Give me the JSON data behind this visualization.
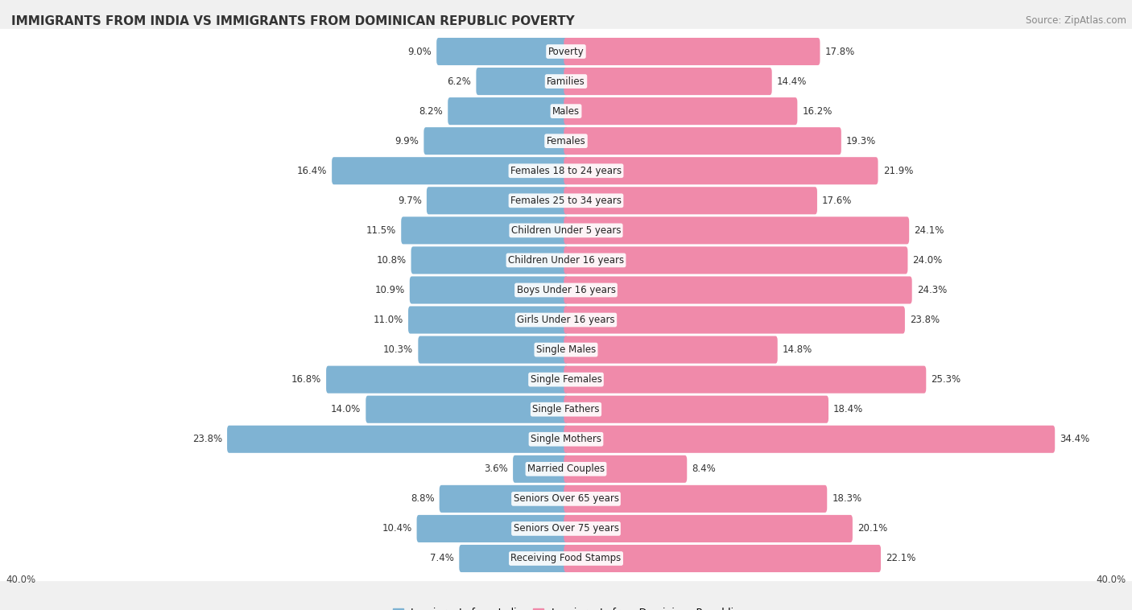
{
  "title": "IMMIGRANTS FROM INDIA VS IMMIGRANTS FROM DOMINICAN REPUBLIC POVERTY",
  "source": "Source: ZipAtlas.com",
  "categories": [
    "Poverty",
    "Families",
    "Males",
    "Females",
    "Females 18 to 24 years",
    "Females 25 to 34 years",
    "Children Under 5 years",
    "Children Under 16 years",
    "Boys Under 16 years",
    "Girls Under 16 years",
    "Single Males",
    "Single Females",
    "Single Fathers",
    "Single Mothers",
    "Married Couples",
    "Seniors Over 65 years",
    "Seniors Over 75 years",
    "Receiving Food Stamps"
  ],
  "india_values": [
    9.0,
    6.2,
    8.2,
    9.9,
    16.4,
    9.7,
    11.5,
    10.8,
    10.9,
    11.0,
    10.3,
    16.8,
    14.0,
    23.8,
    3.6,
    8.8,
    10.4,
    7.4
  ],
  "dr_values": [
    17.8,
    14.4,
    16.2,
    19.3,
    21.9,
    17.6,
    24.1,
    24.0,
    24.3,
    23.8,
    14.8,
    25.3,
    18.4,
    34.4,
    8.4,
    18.3,
    20.1,
    22.1
  ],
  "india_color": "#7fb3d3",
  "dr_color": "#f08aaa",
  "background_color": "#f0f0f0",
  "bar_background": "#ffffff",
  "axis_limit": 40.0,
  "legend_india": "Immigrants from India",
  "legend_dr": "Immigrants from Dominican Republic",
  "title_fontsize": 11,
  "source_fontsize": 8.5,
  "label_fontsize": 8.5,
  "value_fontsize": 8.5
}
